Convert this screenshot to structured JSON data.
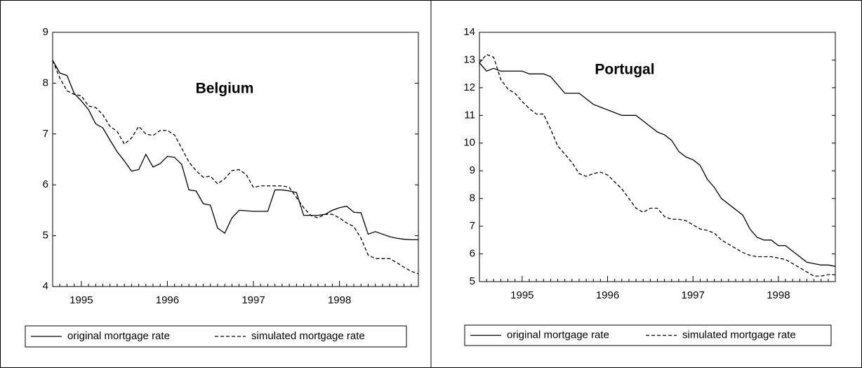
{
  "chart_data": [
    {
      "type": "line",
      "title": "Belgium",
      "categories": [
        null,
        null,
        null,
        null,
        "1995",
        null,
        null,
        null,
        null,
        null,
        null,
        null,
        null,
        null,
        null,
        null,
        "1996",
        null,
        null,
        null,
        null,
        null,
        null,
        null,
        null,
        null,
        null,
        null,
        "1997",
        null,
        null,
        null,
        null,
        null,
        null,
        null,
        null,
        null,
        null,
        null,
        "1998",
        null,
        null,
        null,
        null,
        null,
        null,
        null,
        null,
        null,
        null,
        null
      ],
      "series": [
        {
          "name": "original mortgage rate",
          "color": "#000000",
          "style": "solid",
          "values": [
            8.45,
            8.2,
            8.15,
            7.8,
            7.65,
            7.48,
            7.2,
            7.12,
            6.88,
            6.65,
            6.47,
            6.27,
            6.3,
            6.6,
            6.35,
            6.42,
            6.56,
            6.54,
            6.4,
            5.9,
            5.88,
            5.63,
            5.6,
            5.15,
            5.05,
            5.35,
            5.5,
            5.49,
            5.48,
            5.48,
            5.48,
            5.9,
            5.9,
            5.88,
            5.85,
            5.4,
            5.4,
            5.4,
            5.42,
            5.5,
            5.55,
            5.58,
            5.46,
            5.45,
            5.03,
            5.08,
            5.03,
            4.98,
            4.95,
            4.93,
            4.92,
            4.92
          ]
        },
        {
          "name": "simulated mortgage rate",
          "color": "#000000",
          "style": "dashed",
          "values": [
            8.45,
            8.1,
            7.85,
            7.78,
            7.75,
            7.55,
            7.52,
            7.38,
            7.15,
            7.05,
            6.8,
            6.92,
            7.15,
            7.0,
            6.97,
            7.07,
            7.07,
            6.98,
            6.72,
            6.45,
            6.28,
            6.15,
            6.17,
            6.02,
            6.12,
            6.28,
            6.3,
            6.2,
            5.95,
            5.98,
            5.98,
            5.98,
            5.98,
            5.95,
            5.75,
            5.55,
            5.4,
            5.35,
            5.42,
            5.42,
            5.35,
            5.25,
            5.18,
            4.95,
            4.62,
            4.55,
            4.55,
            4.55,
            4.47,
            4.38,
            4.3,
            4.25
          ]
        }
      ],
      "ylim": [
        4,
        9
      ],
      "yticks": [
        4,
        5,
        6,
        7,
        8,
        9
      ],
      "grid": false
    },
    {
      "type": "line",
      "title": "Portugal",
      "categories": [
        null,
        null,
        null,
        null,
        null,
        null,
        "1995",
        null,
        null,
        null,
        null,
        null,
        null,
        null,
        null,
        null,
        null,
        null,
        "1996",
        null,
        null,
        null,
        null,
        null,
        null,
        null,
        null,
        null,
        null,
        null,
        "1997",
        null,
        null,
        null,
        null,
        null,
        null,
        null,
        null,
        null,
        null,
        null,
        "1998",
        null,
        null,
        null,
        null,
        null,
        null,
        null,
        null
      ],
      "series": [
        {
          "name": "original mortgage rate",
          "color": "#000000",
          "style": "solid",
          "values": [
            12.9,
            12.6,
            12.7,
            12.6,
            12.6,
            12.6,
            12.6,
            12.5,
            12.5,
            12.5,
            12.4,
            12.1,
            11.8,
            11.8,
            11.8,
            11.6,
            11.4,
            11.3,
            11.2,
            11.1,
            11.0,
            11.0,
            11.0,
            10.8,
            10.6,
            10.4,
            10.3,
            10.1,
            9.7,
            9.5,
            9.4,
            9.2,
            8.7,
            8.4,
            8.0,
            7.8,
            7.6,
            7.4,
            6.9,
            6.6,
            6.5,
            6.5,
            6.3,
            6.3,
            6.1,
            5.9,
            5.7,
            5.65,
            5.6,
            5.6,
            5.55
          ]
        },
        {
          "name": "simulated mortgage rate",
          "color": "#000000",
          "style": "dashed",
          "values": [
            12.9,
            13.2,
            13.1,
            12.3,
            11.95,
            11.8,
            11.5,
            11.25,
            11.05,
            11.05,
            10.5,
            9.9,
            9.6,
            9.3,
            8.9,
            8.8,
            8.9,
            8.95,
            8.85,
            8.6,
            8.35,
            8.0,
            7.65,
            7.5,
            7.65,
            7.65,
            7.35,
            7.25,
            7.25,
            7.2,
            7.05,
            6.9,
            6.85,
            6.75,
            6.5,
            6.35,
            6.2,
            6.05,
            5.95,
            5.9,
            5.9,
            5.9,
            5.85,
            5.8,
            5.65,
            5.5,
            5.35,
            5.2,
            5.2,
            5.25,
            5.25
          ]
        }
      ],
      "ylim": [
        5,
        14
      ],
      "yticks": [
        5,
        6,
        7,
        8,
        9,
        10,
        11,
        12,
        13,
        14
      ],
      "grid": false
    }
  ]
}
